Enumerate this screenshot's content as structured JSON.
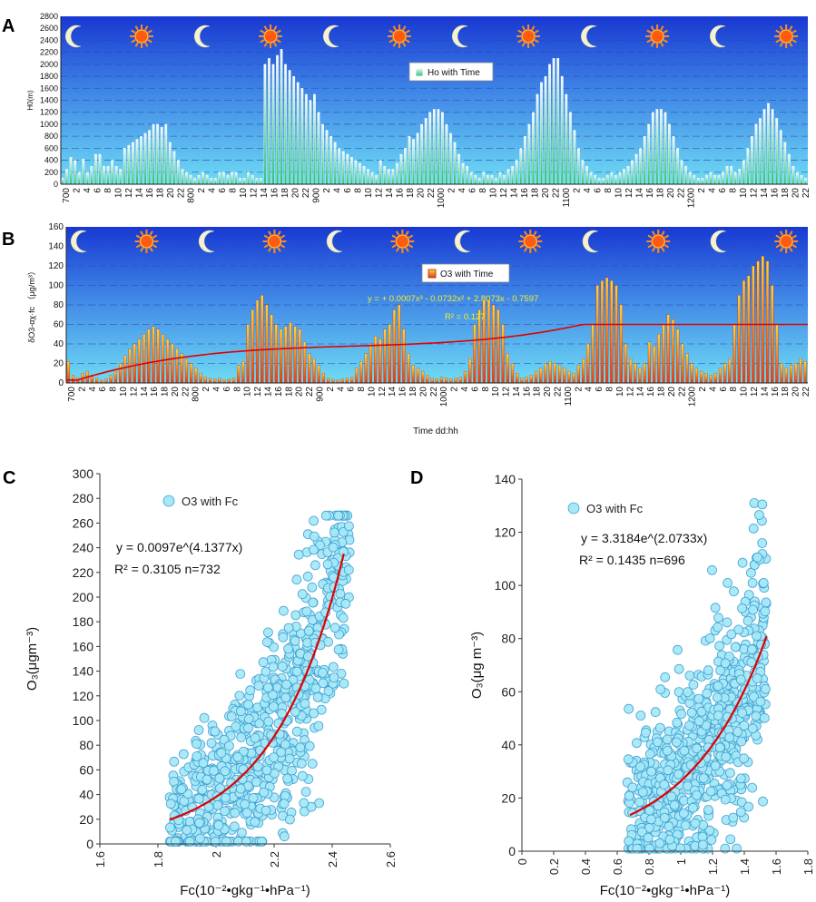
{
  "colors": {
    "sky_top": "#1a3fd6",
    "sky_bottom": "#5fd3f2",
    "ho_bar": "#dff6ff",
    "o3_bar": "#f39a1c",
    "fit_line": "#e00000",
    "scatter_fill": "#9fe6f6",
    "scatter_stroke": "#3ea0d0"
  },
  "chart_data": [
    {
      "panel": "A",
      "type": "bar",
      "ylabel": "H0(m)",
      "ylim": [
        0,
        2800
      ],
      "yticks": [
        "0",
        "200",
        "400",
        "600",
        "800",
        "1000",
        "1200",
        "1400",
        "1600",
        "1800",
        "2000",
        "2200",
        "2400",
        "2600",
        "2800"
      ],
      "xticks": [
        "700",
        "2",
        "4",
        "6",
        "8",
        "10",
        "12",
        "14",
        "16",
        "18",
        "20",
        "22",
        "800",
        "2",
        "4",
        "6",
        "8",
        "10",
        "12",
        "14",
        "16",
        "18",
        "20",
        "22",
        "900",
        "2",
        "4",
        "6",
        "8",
        "10",
        "12",
        "14",
        "16",
        "18",
        "20",
        "22",
        "1000",
        "2",
        "4",
        "6",
        "8",
        "10",
        "12",
        "14",
        "16",
        "18",
        "20",
        "22",
        "1100",
        "2",
        "4",
        "6",
        "8",
        "10",
        "12",
        "14",
        "16",
        "18",
        "20",
        "22",
        "1200",
        "2",
        "4",
        "6",
        "8",
        "10",
        "12",
        "14",
        "16",
        "18",
        "20",
        "22"
      ],
      "legend": "Ho with Time",
      "icons": [
        "moon",
        "sun",
        "moon",
        "sun",
        "moon",
        "sun",
        "moon",
        "sun",
        "moon",
        "sun",
        "moon",
        "sun"
      ],
      "values": [
        100,
        250,
        450,
        400,
        200,
        420,
        200,
        300,
        500,
        500,
        300,
        300,
        400,
        300,
        250,
        600,
        650,
        700,
        750,
        800,
        850,
        900,
        1000,
        1000,
        950,
        1000,
        700,
        550,
        400,
        250,
        200,
        150,
        100,
        150,
        200,
        150,
        100,
        100,
        200,
        200,
        150,
        200,
        200,
        100,
        100,
        200,
        150,
        100,
        100,
        2000,
        2100,
        2000,
        2150,
        2250,
        2000,
        1900,
        1800,
        1700,
        1600,
        1500,
        1400,
        1500,
        1200,
        1000,
        900,
        800,
        700,
        600,
        550,
        500,
        450,
        400,
        350,
        300,
        250,
        200,
        150,
        400,
        300,
        250,
        250,
        350,
        500,
        600,
        800,
        750,
        850,
        1000,
        1100,
        1200,
        1250,
        1250,
        1200,
        1000,
        850,
        700,
        500,
        350,
        300,
        200,
        150,
        100,
        200,
        150,
        150,
        100,
        200,
        150,
        250,
        300,
        400,
        600,
        800,
        1000,
        1200,
        1500,
        1700,
        1800,
        2000,
        2100,
        2100,
        1800,
        1500,
        1200,
        900,
        600,
        400,
        300,
        200,
        150,
        100,
        100,
        150,
        200,
        150,
        200,
        250,
        300,
        400,
        500,
        600,
        800,
        1000,
        1200,
        1250,
        1250,
        1200,
        1000,
        800,
        600,
        400,
        300,
        200,
        150,
        100,
        100,
        150,
        200,
        150,
        150,
        200,
        300,
        300,
        200,
        250,
        400,
        600,
        800,
        1000,
        1100,
        1250,
        1350,
        1250,
        1100,
        900,
        700,
        500,
        300,
        200,
        150,
        100
      ]
    },
    {
      "panel": "B",
      "type": "bar",
      "ylabel": "δO3-αχ·fc （μg/m³）",
      "ylim": [
        0,
        160
      ],
      "yticks": [
        "0",
        "20",
        "40",
        "60",
        "80",
        "100",
        "120",
        "140",
        "160"
      ],
      "xticks": [
        "700",
        "2",
        "4",
        "6",
        "8",
        "10",
        "12",
        "14",
        "16",
        "18",
        "20",
        "22",
        "800",
        "2",
        "4",
        "6",
        "8",
        "10",
        "12",
        "14",
        "16",
        "18",
        "20",
        "22",
        "900",
        "2",
        "4",
        "6",
        "8",
        "10",
        "12",
        "14",
        "16",
        "18",
        "20",
        "22",
        "1000",
        "2",
        "4",
        "6",
        "8",
        "10",
        "12",
        "14",
        "16",
        "18",
        "20",
        "22",
        "1100",
        "2",
        "4",
        "6",
        "8",
        "10",
        "12",
        "14",
        "16",
        "18",
        "20",
        "22",
        "1200",
        "2",
        "4",
        "6",
        "8",
        "10",
        "12",
        "14",
        "16",
        "18",
        "20",
        "22"
      ],
      "xlabel": "Time dd:hh",
      "legend": "O3 with Time",
      "equation": "y = + 0.0007x³ - 0.0732x² + 2.8073x - 0.7597",
      "r2": "R² = 0.127",
      "icons": [
        "moon",
        "sun",
        "moon",
        "sun",
        "moon",
        "sun",
        "moon",
        "sun",
        "moon",
        "sun",
        "moon",
        "sun"
      ],
      "values": [
        22,
        8,
        5,
        10,
        12,
        8,
        5,
        3,
        4,
        8,
        12,
        20,
        28,
        35,
        40,
        45,
        50,
        55,
        58,
        55,
        50,
        45,
        40,
        35,
        30,
        25,
        20,
        15,
        10,
        6,
        5,
        4,
        5,
        3,
        4,
        5,
        18,
        22,
        60,
        75,
        85,
        90,
        80,
        70,
        60,
        55,
        58,
        62,
        58,
        55,
        42,
        30,
        25,
        18,
        10,
        5,
        4,
        3,
        4,
        5,
        6,
        15,
        22,
        30,
        40,
        48,
        45,
        55,
        60,
        75,
        80,
        55,
        30,
        18,
        15,
        12,
        8,
        5,
        4,
        6,
        5,
        4,
        5,
        6,
        12,
        25,
        60,
        75,
        85,
        85,
        80,
        75,
        60,
        30,
        20,
        10,
        5,
        6,
        8,
        12,
        15,
        20,
        22,
        20,
        18,
        15,
        12,
        10,
        18,
        25,
        40,
        60,
        100,
        105,
        108,
        105,
        100,
        80,
        40,
        25,
        20,
        15,
        20,
        42,
        38,
        50,
        60,
        70,
        65,
        55,
        40,
        30,
        20,
        15,
        12,
        10,
        8,
        10,
        15,
        20,
        25,
        60,
        90,
        105,
        110,
        120,
        125,
        130,
        125,
        100,
        60,
        20,
        15,
        18,
        20,
        25,
        22
      ]
    },
    {
      "panel": "C",
      "type": "scatter",
      "xlabel": "Fc(10⁻²•gkg⁻¹•hPa⁻¹)",
      "ylabel": "O₃(μgm⁻³)",
      "xlim": [
        1.6,
        2.6
      ],
      "ylim": [
        0,
        300
      ],
      "xticks": [
        "1.6",
        "1.8",
        "2",
        "2.2",
        "2.4",
        "2.6"
      ],
      "yticks": [
        "0",
        "20",
        "40",
        "60",
        "80",
        "100",
        "120",
        "140",
        "160",
        "180",
        "200",
        "220",
        "240",
        "260",
        "280",
        "300"
      ],
      "legend": "O3 with Fc",
      "equation": "y = 0.0097e^(4.1377x)",
      "stats": "R² = 0.3105 n=732",
      "fit": {
        "a": 0.0097,
        "b": 4.1377,
        "x_range": [
          1.84,
          2.44
        ]
      },
      "sample": {
        "n": 732,
        "x_range": [
          1.84,
          2.46
        ],
        "y_max": 266
      }
    },
    {
      "panel": "D",
      "type": "scatter",
      "xlabel": "Fc(10⁻²•gkg⁻¹•hPa⁻¹)",
      "ylabel": "O₃(μg m⁻³)",
      "xlim": [
        0,
        1.8
      ],
      "ylim": [
        0,
        140
      ],
      "xticks": [
        "0",
        "0.2",
        "0.4",
        "0.6",
        "0.8",
        "1",
        "1.2",
        "1.4",
        "1.6",
        "1.8"
      ],
      "yticks": [
        "0",
        "20",
        "40",
        "60",
        "80",
        "100",
        "120",
        "140"
      ],
      "legend": "O3 with Fc",
      "equation": "y = 3.3184e^(2.0733x)",
      "stats": "R² = 0.1435 n=696",
      "fit": {
        "a": 3.3184,
        "b": 2.0733,
        "x_range": [
          0.68,
          1.54
        ]
      },
      "sample": {
        "n": 696,
        "x_range": [
          0.66,
          1.54
        ],
        "y_max": 131
      }
    }
  ],
  "panel_labels": [
    "A",
    "B",
    "C",
    "D"
  ]
}
